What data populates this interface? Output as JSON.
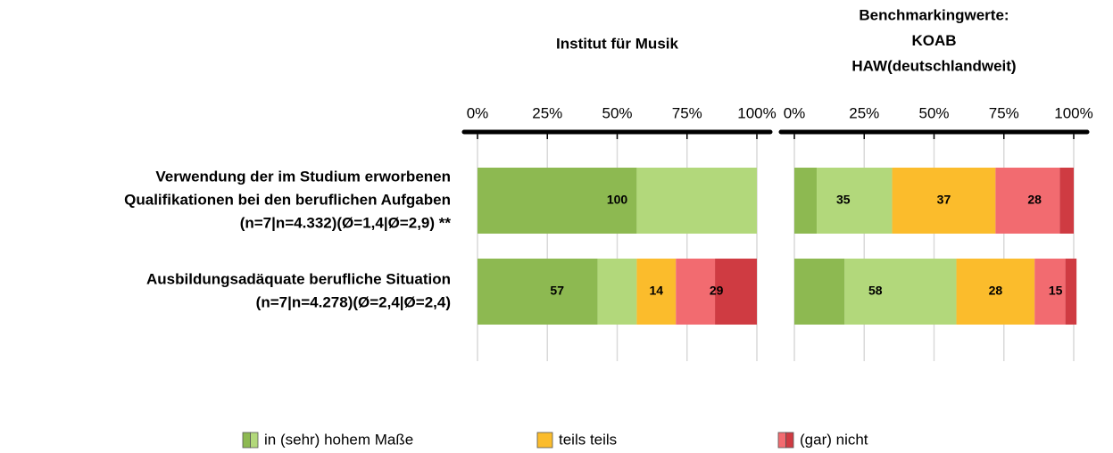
{
  "chart_data": {
    "type": "bar",
    "orientation": "horizontal",
    "stacked": true,
    "grid": true,
    "categories": [
      [
        "Verwendung der im Studium erworbenen",
        "Qualifikationen bei den beruflichen Aufgaben",
        "(n=7|n=4.332)(Ø=1,4|Ø=2,9) **"
      ],
      [
        "Ausbildungsadäquate berufliche Situation",
        "(n=7|n=4.278)(Ø=2,4|Ø=2,4)"
      ]
    ],
    "groups": [
      {
        "name": "in (sehr) hohem Maße",
        "colors": [
          "#8db951",
          "#b2d87b"
        ]
      },
      {
        "name": "teils teils",
        "colors": [
          "#fbbc2c"
        ]
      },
      {
        "name": "(gar) nicht",
        "colors": [
          "#f26b70",
          "#cf3b42"
        ]
      }
    ],
    "legend": "bottom",
    "panels": [
      {
        "title": [
          "Institut für Musik"
        ],
        "xlim": [
          0,
          100
        ],
        "xticks": [
          {
            "value": 0,
            "label": "0%"
          },
          {
            "value": 25,
            "label": "25%"
          },
          {
            "value": 50,
            "label": "50%"
          },
          {
            "value": 75,
            "label": "75%"
          },
          {
            "value": 100,
            "label": "100%"
          }
        ],
        "totals": [
          [
            100,
            null,
            null
          ],
          [
            57,
            14,
            29
          ]
        ],
        "segments": [
          [
            [
              57,
              43
            ],
            [
              0
            ],
            [
              0,
              0
            ]
          ],
          [
            [
              43,
              14
            ],
            [
              14
            ],
            [
              14,
              15
            ]
          ]
        ]
      },
      {
        "title": [
          "Benchmarkingwerte:",
          "KOAB",
          "HAW(deutschlandweit)"
        ],
        "xlim": [
          0,
          100
        ],
        "xticks": [
          {
            "value": 0,
            "label": "0%"
          },
          {
            "value": 25,
            "label": "25%"
          },
          {
            "value": 50,
            "label": "50%"
          },
          {
            "value": 75,
            "label": "75%"
          },
          {
            "value": 100,
            "label": "100%"
          }
        ],
        "totals": [
          [
            35,
            37,
            28
          ],
          [
            58,
            28,
            15
          ]
        ],
        "segments": [
          [
            [
              8,
              27
            ],
            [
              37
            ],
            [
              23,
              5
            ]
          ],
          [
            [
              18,
              40
            ],
            [
              28
            ],
            [
              11,
              4
            ]
          ]
        ]
      }
    ]
  }
}
